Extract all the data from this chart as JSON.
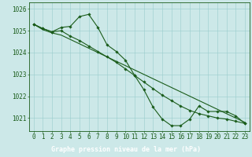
{
  "title": "Graphe pression niveau de la mer (hPa)",
  "background_color": "#cce8e8",
  "plot_bg_color": "#cce8e8",
  "label_bg_color": "#2d6b2d",
  "label_text_color": "#ffffff",
  "grid_color": "#99cccc",
  "line_color": "#1a5c1a",
  "x_values": [
    0,
    1,
    2,
    3,
    4,
    5,
    6,
    7,
    8,
    9,
    10,
    11,
    12,
    13,
    14,
    15,
    16,
    17,
    18,
    19,
    20,
    21,
    22,
    23
  ],
  "series1": [
    1025.3,
    1025.1,
    1024.95,
    1025.15,
    1025.2,
    1025.65,
    1025.75,
    1025.15,
    1024.35,
    1024.05,
    1023.65,
    1022.95,
    1022.3,
    1021.5,
    1020.95,
    1020.65,
    1020.65,
    1020.95,
    1021.55,
    1021.3,
    1021.3,
    1021.3,
    1021.1,
    1020.75
  ],
  "series2": [
    1025.3,
    1025.1,
    1024.95,
    1025.0,
    1024.75,
    1024.55,
    1024.3,
    1024.05,
    1023.8,
    1023.55,
    1023.25,
    1022.95,
    1022.65,
    1022.35,
    1022.05,
    1021.8,
    1021.55,
    1021.35,
    1021.2,
    1021.1,
    1021.0,
    1020.95,
    1020.85,
    1020.75
  ],
  "series3": [
    1025.3,
    1025.05,
    1024.9,
    1024.8,
    1024.6,
    1024.4,
    1024.2,
    1024.0,
    1023.8,
    1023.6,
    1023.4,
    1023.2,
    1023.0,
    1022.8,
    1022.6,
    1022.4,
    1022.2,
    1022.0,
    1021.8,
    1021.6,
    1021.4,
    1021.2,
    1021.0,
    1020.8
  ],
  "ylim_min": 1020.4,
  "ylim_max": 1026.3,
  "yticks": [
    1021,
    1022,
    1023,
    1024,
    1025,
    1026
  ],
  "tick_fontsize": 5.5,
  "label_fontsize": 6.0
}
